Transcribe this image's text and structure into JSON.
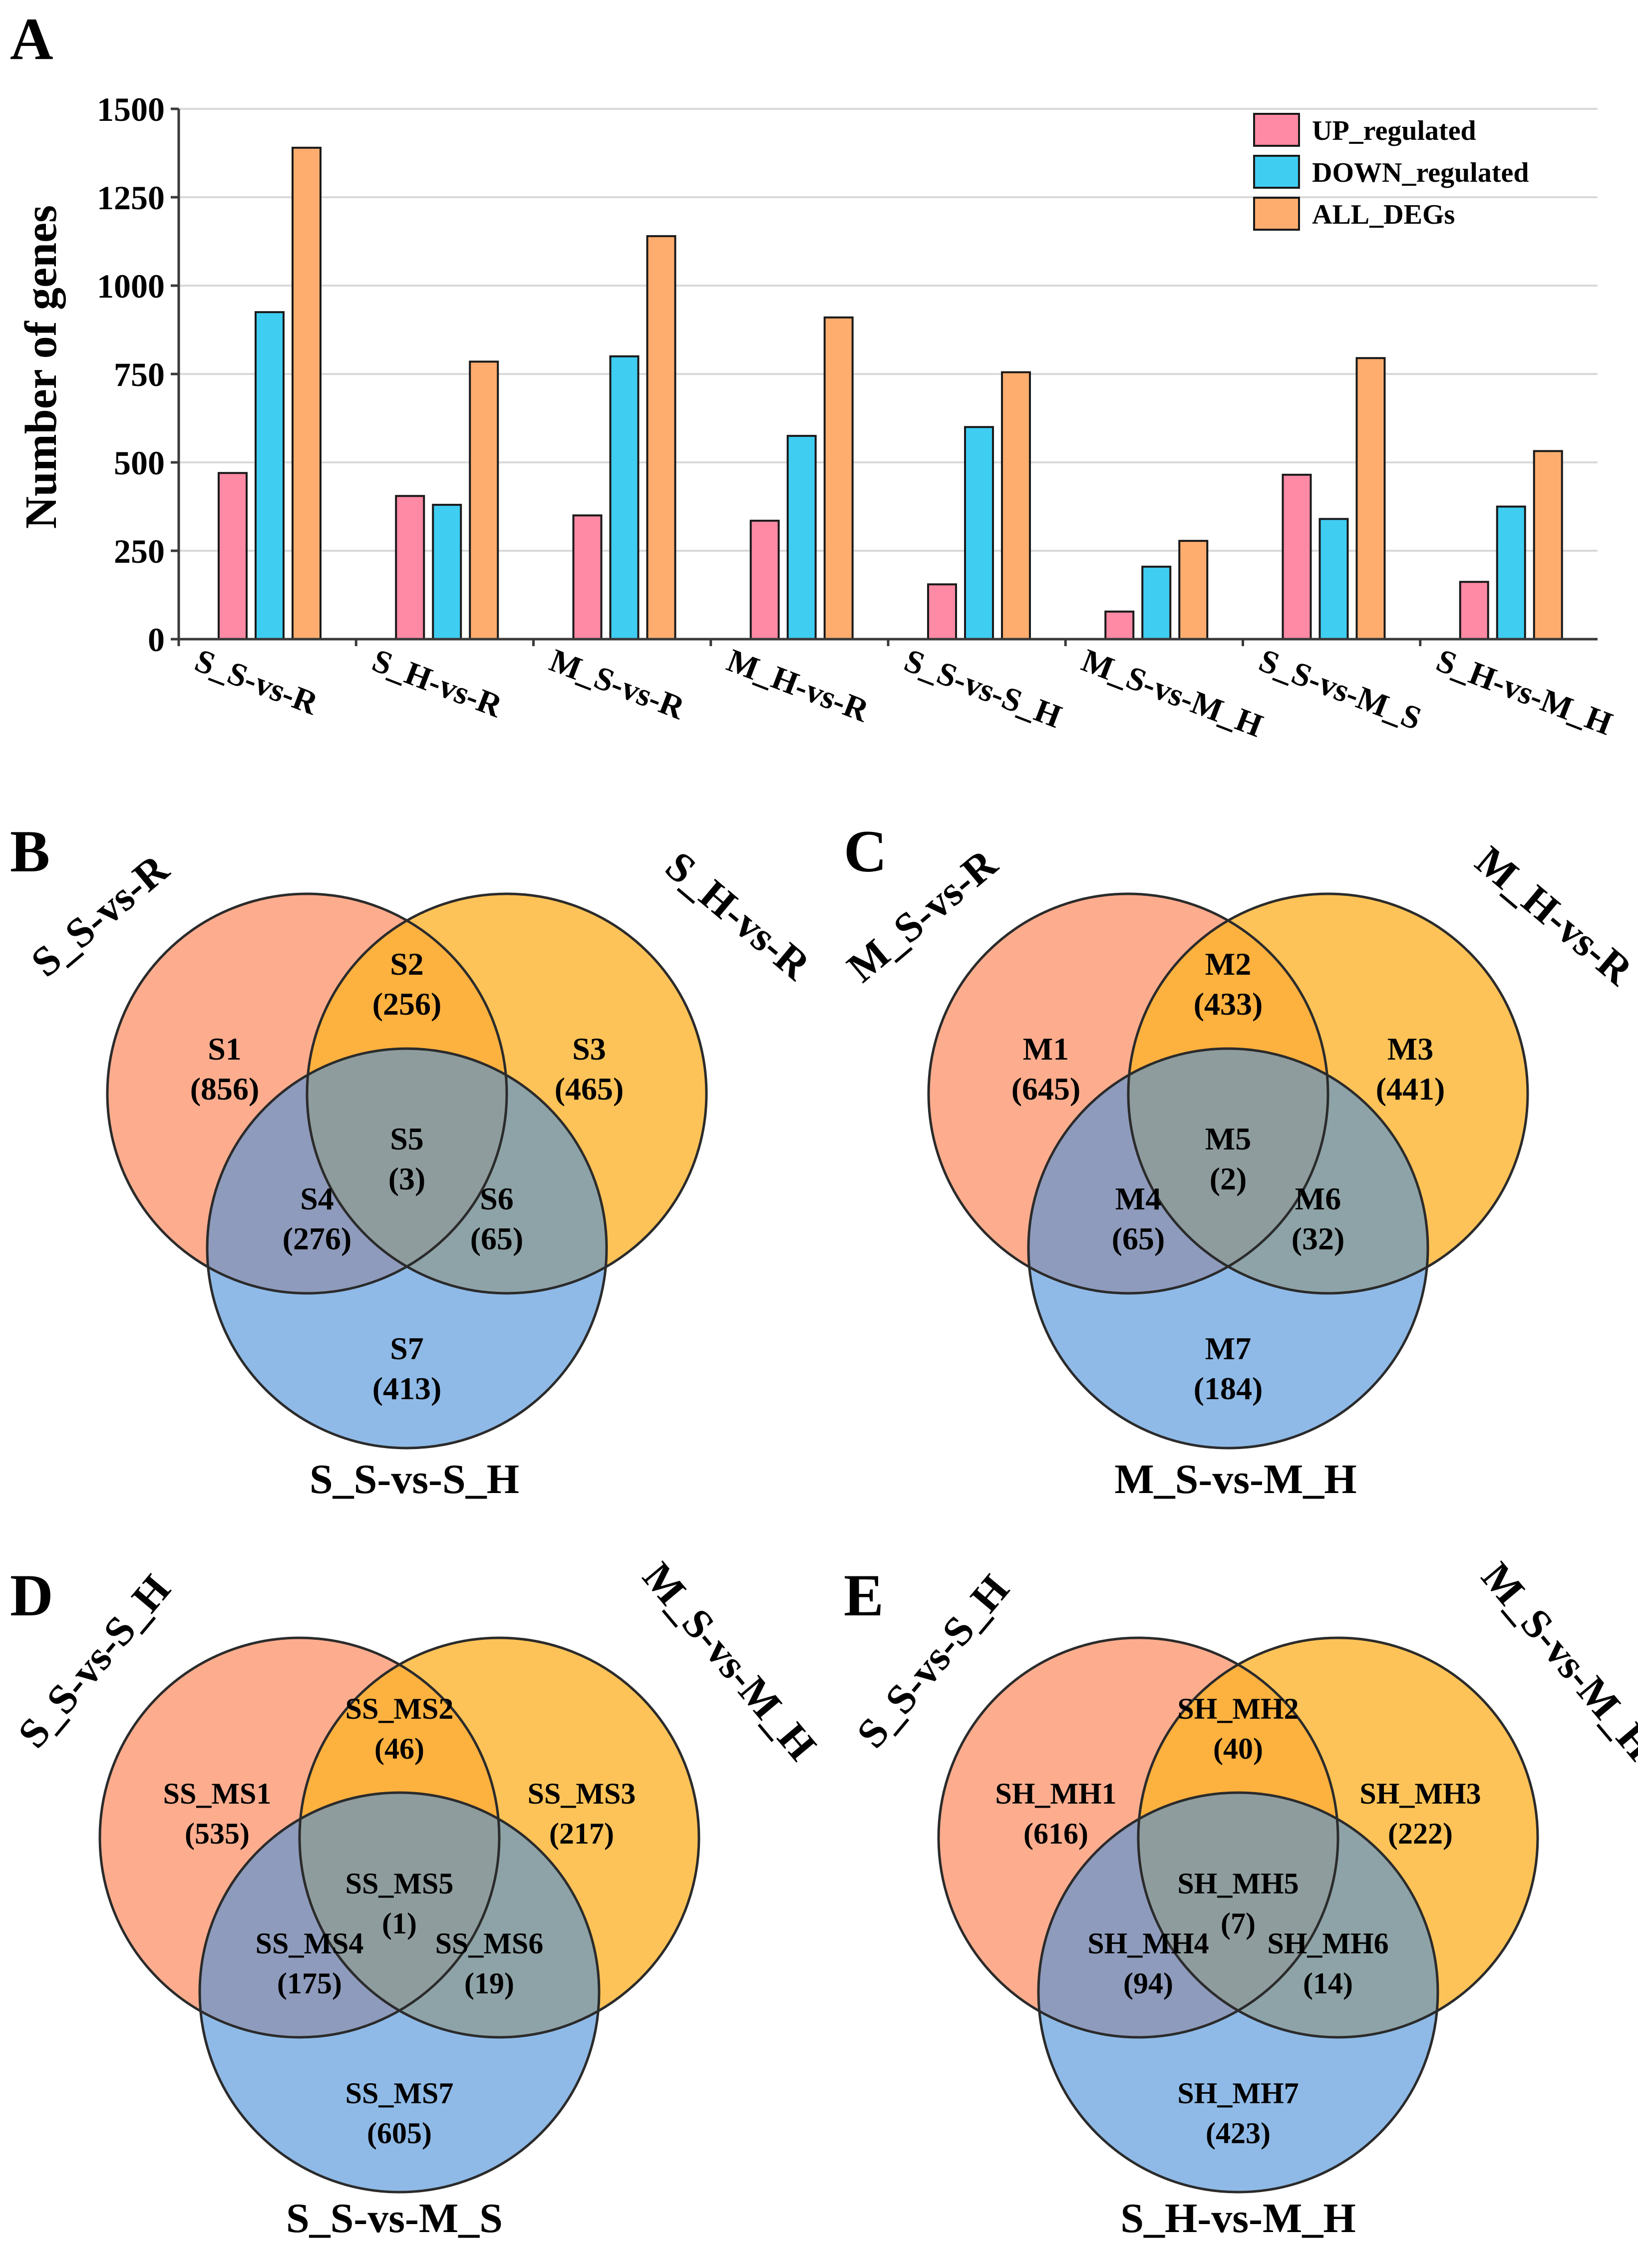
{
  "panels": {
    "a": "A",
    "b": "B",
    "c": "C",
    "d": "D",
    "e": "E"
  },
  "colors": {
    "up": "#FF8AA5",
    "down": "#3FCDF2",
    "all": "#FFAD6E",
    "venn_left": "#FC8D62",
    "venn_right": "#FDB229",
    "venn_bottom": "#4A90D9"
  },
  "chart_data": [
    {
      "type": "bar",
      "title": "",
      "xlabel": "",
      "ylabel": "Number of genes",
      "ylim": [
        0,
        1500
      ],
      "yticks": [
        0,
        250,
        500,
        750,
        1000,
        1250,
        1500
      ],
      "grid": true,
      "legend": "top-right",
      "categories": [
        "S_S-vs-R",
        "S_H-vs-R",
        "M_S-vs-R",
        "M_H-vs-R",
        "S_S-vs-S_H",
        "M_S-vs-M_H",
        "S_S-vs-M_S",
        "S_H-vs-M_H"
      ],
      "series": [
        {
          "name": "UP_regulated",
          "values": [
            470,
            405,
            350,
            335,
            155,
            78,
            465,
            162
          ]
        },
        {
          "name": "DOWN_regulated",
          "values": [
            925,
            380,
            800,
            575,
            600,
            205,
            340,
            375
          ]
        },
        {
          "name": "ALL_DEGs",
          "values": [
            1390,
            785,
            1140,
            910,
            755,
            278,
            795,
            532
          ]
        }
      ]
    },
    {
      "type": "venn",
      "panel": "B",
      "sets": [
        "S_S-vs-R",
        "S_H-vs-R",
        "S_S-vs-S_H"
      ],
      "regions": [
        {
          "name": "S1",
          "count": "(856)"
        },
        {
          "name": "S2",
          "count": "(256)"
        },
        {
          "name": "S3",
          "count": "(465)"
        },
        {
          "name": "S4",
          "count": "(276)"
        },
        {
          "name": "S5",
          "count": "(3)"
        },
        {
          "name": "S6",
          "count": "(65)"
        },
        {
          "name": "S7",
          "count": "(413)"
        }
      ]
    },
    {
      "type": "venn",
      "panel": "C",
      "sets": [
        "M_S-vs-R",
        "M_H-vs-R",
        "M_S-vs-M_H"
      ],
      "regions": [
        {
          "name": "M1",
          "count": "(645)"
        },
        {
          "name": "M2",
          "count": "(433)"
        },
        {
          "name": "M3",
          "count": "(441)"
        },
        {
          "name": "M4",
          "count": "(65)"
        },
        {
          "name": "M5",
          "count": "(2)"
        },
        {
          "name": "M6",
          "count": "(32)"
        },
        {
          "name": "M7",
          "count": "(184)"
        }
      ]
    },
    {
      "type": "venn",
      "panel": "D",
      "sets": [
        "S_S-vs-S_H",
        "M_S-vs-M_H",
        "S_S-vs-M_S"
      ],
      "regions": [
        {
          "name": "SS_MS1",
          "count": "(535)"
        },
        {
          "name": "SS_MS2",
          "count": "(46)"
        },
        {
          "name": "SS_MS3",
          "count": "(217)"
        },
        {
          "name": "SS_MS4",
          "count": "(175)"
        },
        {
          "name": "SS_MS5",
          "count": "(1)"
        },
        {
          "name": "SS_MS6",
          "count": "(19)"
        },
        {
          "name": "SS_MS7",
          "count": "(605)"
        }
      ]
    },
    {
      "type": "venn",
      "panel": "E",
      "sets": [
        "S_S-vs-S_H",
        "M_S-vs-M_H",
        "S_H-vs-M_H"
      ],
      "regions": [
        {
          "name": "SH_MH1",
          "count": "(616)"
        },
        {
          "name": "SH_MH2",
          "count": "(40)"
        },
        {
          "name": "SH_MH3",
          "count": "(222)"
        },
        {
          "name": "SH_MH4",
          "count": "(94)"
        },
        {
          "name": "SH_MH5",
          "count": "(7)"
        },
        {
          "name": "SH_MH6",
          "count": "(14)"
        },
        {
          "name": "SH_MH7",
          "count": "(423)"
        }
      ]
    }
  ]
}
